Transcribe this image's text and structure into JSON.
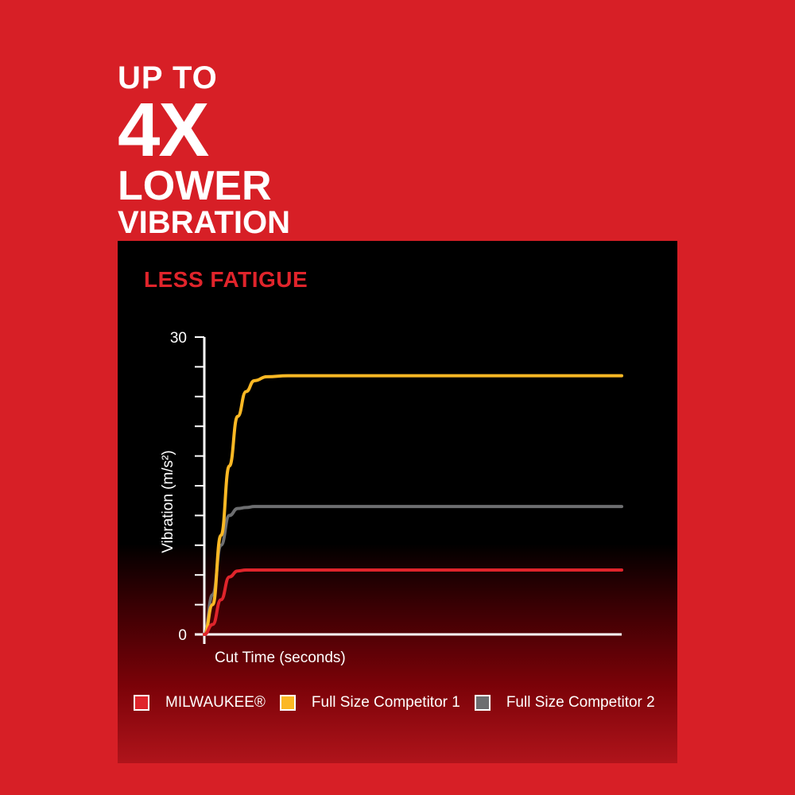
{
  "headline": {
    "line1": "UP TO",
    "line2": "4X",
    "line3": "LOWER",
    "line4": "VIBRATION"
  },
  "chart_data": {
    "type": "line",
    "title": "LESS FATIGUE",
    "xlabel": "Cut Time (seconds)",
    "ylabel": "Vibration (m/s²)",
    "ylim": [
      0,
      30
    ],
    "yticks": [
      0,
      3,
      6,
      9,
      12,
      15,
      18,
      21,
      24,
      27,
      30
    ],
    "ytick_labels": [
      "0",
      "30"
    ],
    "x": [
      0,
      2,
      4,
      6,
      8,
      10,
      12,
      15,
      20,
      100
    ],
    "series": [
      {
        "name": "MILWAUKEE®",
        "color": "#e0242b",
        "values": [
          0,
          1,
          3.5,
          5.8,
          6.4,
          6.5,
          6.5,
          6.5,
          6.5,
          6.5
        ]
      },
      {
        "name": "Full Size Competitor 1",
        "color": "#fbb824",
        "values": [
          0,
          3,
          10,
          17,
          22,
          24.5,
          25.6,
          26,
          26.1,
          26.1
        ]
      },
      {
        "name": "Full Size Competitor 2",
        "color": "#6d6e70",
        "values": [
          0,
          4,
          9,
          12,
          12.7,
          12.8,
          12.9,
          12.9,
          12.9,
          12.9
        ]
      }
    ],
    "legend_position": "bottom",
    "grid": false
  },
  "colors": {
    "background": "#d71f26",
    "panel": "#000000",
    "axis": "#ffffff"
  }
}
